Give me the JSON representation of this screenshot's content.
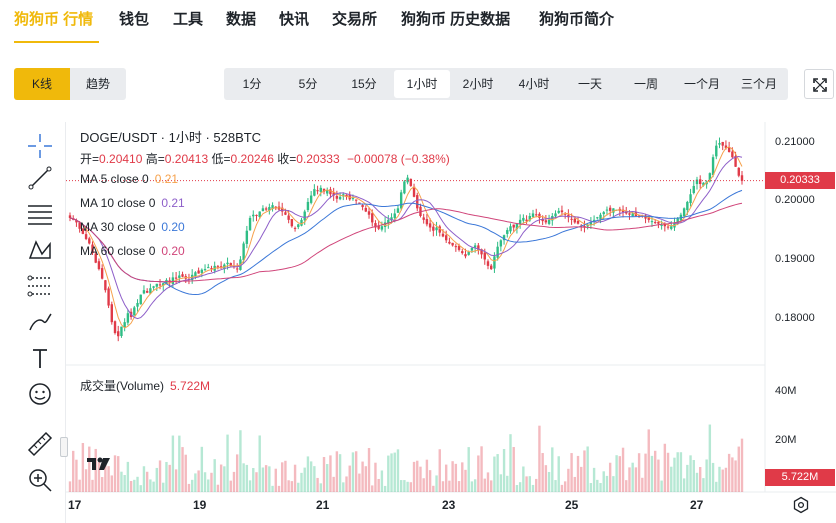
{
  "nav": {
    "items": [
      {
        "label": "狗狗币 行情",
        "active": true
      },
      {
        "label": "钱包"
      },
      {
        "label": "工具"
      },
      {
        "label": "数据"
      },
      {
        "label": "快讯"
      },
      {
        "label": "交易所"
      },
      {
        "label": "狗狗币 历史数据"
      },
      {
        "label": "狗狗币简介"
      }
    ]
  },
  "chart_type": {
    "kline": "K线",
    "trend": "趋势"
  },
  "intervals": [
    "1分",
    "5分",
    "15分",
    "1小时",
    "2小时",
    "4小时",
    "一天",
    "一周",
    "一个月",
    "三个月"
  ],
  "selected_interval": "1小时",
  "legend": {
    "symbol_line": "DOGE/USDT · 1小时 · 528BTC",
    "ohlc": {
      "open_label": "开=",
      "open": "0.20410",
      "high_label": "高=",
      "high": "0.20413",
      "low_label": "低=",
      "low": "0.20246",
      "close_label": "收=",
      "close": "0.20333",
      "change": "−0.00078 (−0.38%)"
    },
    "ma": [
      {
        "label": "MA 5 close 0",
        "value": "0.21",
        "color": "#f6a24d"
      },
      {
        "label": "MA 10 close 0",
        "value": "0.21",
        "color": "#8e5fc9"
      },
      {
        "label": "MA 30 close 0",
        "value": "0.20",
        "color": "#3c78d8"
      },
      {
        "label": "MA 60 close 0",
        "value": "0.20",
        "color": "#d0457a"
      }
    ],
    "volume_label": "成交量(Volume)",
    "volume_value": "5.722M"
  },
  "price_axis": [
    "0.21000",
    "0.20000",
    "0.19000",
    "0.18000"
  ],
  "current_price": "0.20333",
  "volume_axis": [
    "40M",
    "20M"
  ],
  "current_volume": "5.722M",
  "x_axis": [
    "17",
    "19",
    "21",
    "23",
    "25",
    "27"
  ],
  "colors": {
    "up": "#2ebd85",
    "down": "#e03a48",
    "accent": "#f0b90b"
  },
  "chart_data": {
    "type": "candlestick",
    "symbol": "DOGE/USDT",
    "interval": "1小时",
    "x_ticks": [
      "17",
      "19",
      "21",
      "23",
      "25",
      "27"
    ],
    "y_ticks": [
      0.21,
      0.2,
      0.19,
      0.18
    ],
    "ylim": [
      0.1745,
      0.2125
    ],
    "close_trend": [
      0.1975,
      0.1972,
      0.1968,
      0.1958,
      0.195,
      0.1942,
      0.1935,
      0.192,
      0.1905,
      0.1895,
      0.188,
      0.1862,
      0.1838,
      0.1812,
      0.1795,
      0.179,
      0.1805,
      0.1812,
      0.1826,
      0.182,
      0.1835,
      0.1842,
      0.1855,
      0.1862,
      0.1858,
      0.1865,
      0.1868,
      0.1872,
      0.187,
      0.1873,
      0.1878,
      0.1874,
      0.1882,
      0.188,
      0.1885,
      0.1883,
      0.188,
      0.1878,
      0.1886,
      0.189,
      0.1888,
      0.1894,
      0.1895,
      0.1898,
      0.1895,
      0.19,
      0.1898,
      0.1896,
      0.1902,
      0.1905,
      0.19,
      0.1898,
      0.1895,
      0.191,
      0.1935,
      0.1955,
      0.1975,
      0.198,
      0.1978,
      0.1985,
      0.199,
      0.1988,
      0.1992,
      0.1995,
      0.199,
      0.1988,
      0.1985,
      0.198,
      0.1972,
      0.1962,
      0.1958,
      0.1965,
      0.1972,
      0.1985,
      0.2,
      0.201,
      0.202,
      0.2018,
      0.2022,
      0.2016,
      0.2018,
      0.2012,
      0.201,
      0.2005,
      0.2008,
      0.2012,
      0.2008,
      0.2004,
      0.2006,
      0.2002,
      0.1998,
      0.1992,
      0.1985,
      0.198,
      0.1968,
      0.196,
      0.1958,
      0.1962,
      0.1968,
      0.1972,
      0.1976,
      0.1982,
      0.199,
      0.2015,
      0.2032,
      0.2038,
      0.2025,
      0.2008,
      0.199,
      0.1978,
      0.1972,
      0.1965,
      0.196,
      0.1955,
      0.196,
      0.1952,
      0.1946,
      0.194,
      0.1935,
      0.1932,
      0.193,
      0.1925,
      0.192,
      0.1915,
      0.1922,
      0.1928,
      0.1932,
      0.1925,
      0.1918,
      0.191,
      0.19,
      0.1895,
      0.1915,
      0.193,
      0.194,
      0.1948,
      0.1956,
      0.1962,
      0.196,
      0.1966,
      0.1972,
      0.1975,
      0.197,
      0.1978,
      0.1982,
      0.198,
      0.1975,
      0.197,
      0.1968,
      0.1972,
      0.1978,
      0.1982,
      0.1986,
      0.1984,
      0.198,
      0.1976,
      0.1972,
      0.1968,
      0.1966,
      0.1962,
      0.196,
      0.1964,
      0.1968,
      0.1972,
      0.1976,
      0.198,
      0.1984,
      0.1988,
      0.1986,
      0.199,
      0.1988,
      0.1986,
      0.1984,
      0.1982,
      0.198,
      0.1982,
      0.1978,
      0.1976,
      0.1978,
      0.1974,
      0.1972,
      0.197,
      0.1968,
      0.1966,
      0.1964,
      0.1962,
      0.196,
      0.1962,
      0.1968,
      0.1974,
      0.198,
      0.199,
      0.2,
      0.2012,
      0.2025,
      0.2035,
      0.2028,
      0.203,
      0.2032,
      0.2045,
      0.207,
      0.2088,
      0.2092,
      0.2088,
      0.2084,
      0.2078,
      0.207,
      0.2055,
      0.2041,
      0.2033
    ]
  }
}
